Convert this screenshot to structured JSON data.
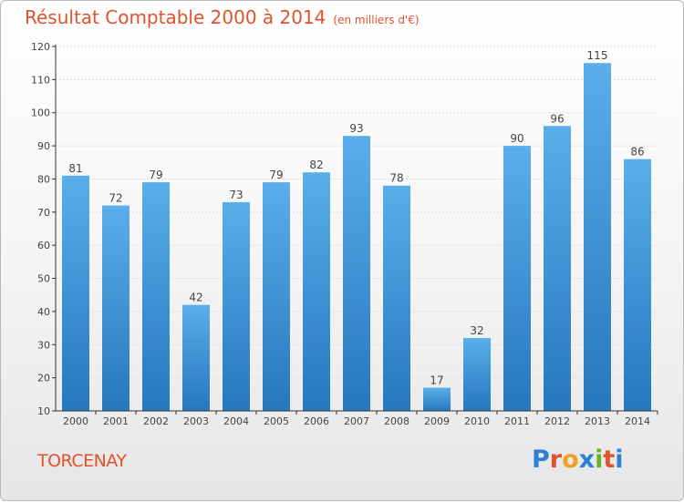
{
  "header": {
    "title": "Résultat Comptable 2000 à 2014",
    "unit": "(en milliers d'€)"
  },
  "footer": {
    "commune": "TORCENAY",
    "logo": [
      "P",
      "r",
      "o",
      "x",
      "i",
      "t",
      "i"
    ],
    "logo_colors": [
      "#2e7fd6",
      "#e0522c",
      "#f0a020",
      "#2e7fd6",
      "#66b32e",
      "#e0522c",
      "#2e7fd6"
    ]
  },
  "colors": {
    "bar_top": "#5aaeea",
    "bar_bottom": "#2677bd",
    "grid": "#dcdcdc",
    "axis": "#333333",
    "accent": "#e0522c"
  },
  "chart_data": {
    "type": "bar",
    "categories": [
      "2000",
      "2001",
      "2002",
      "2003",
      "2004",
      "2005",
      "2006",
      "2007",
      "2008",
      "2009",
      "2010",
      "2011",
      "2012",
      "2013",
      "2014"
    ],
    "values": [
      81,
      72,
      79,
      42,
      73,
      79,
      82,
      93,
      78,
      17,
      32,
      90,
      96,
      115,
      86
    ],
    "title": "Résultat Comptable 2000 à 2014",
    "xlabel": "",
    "ylabel": "",
    "ylim": [
      10,
      120
    ],
    "yticks": [
      10,
      20,
      30,
      40,
      50,
      60,
      70,
      80,
      90,
      100,
      110,
      120
    ],
    "grid": true,
    "legend": "none"
  }
}
